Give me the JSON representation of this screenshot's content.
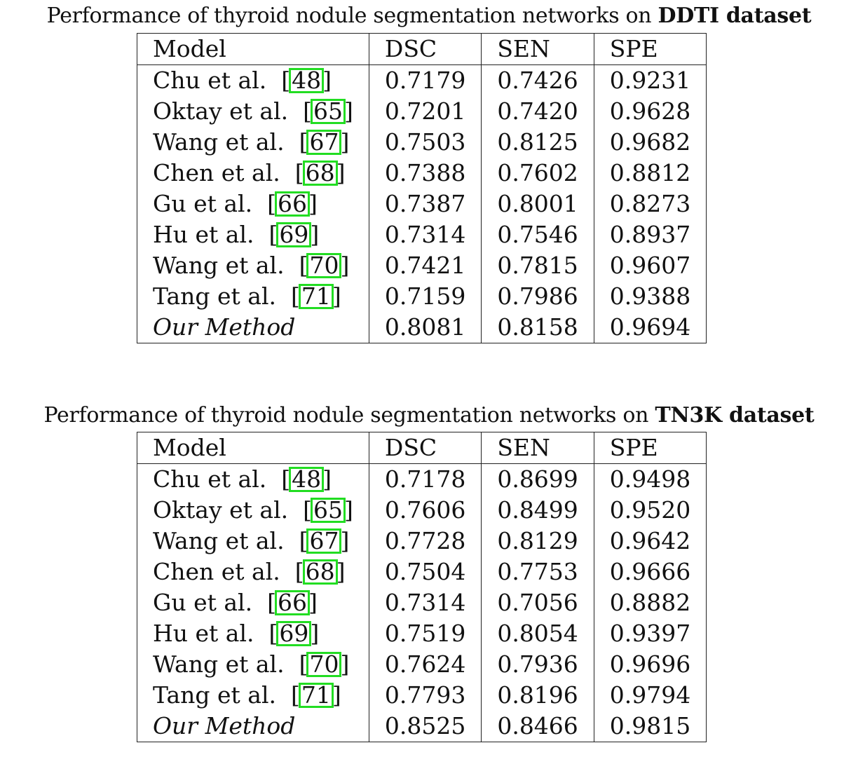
{
  "tables": [
    {
      "caption_prefix": "Performance of thyroid nodule segmentation networks on ",
      "caption_bold": "DDTI dataset",
      "headers": [
        "Model",
        "DSC",
        "SEN",
        "SPE"
      ],
      "rows": [
        {
          "model": "Chu et al.",
          "ref": "48",
          "dsc": "0.7179",
          "sen": "0.7426",
          "spe": "0.9231"
        },
        {
          "model": "Oktay et al.",
          "ref": "65",
          "dsc": "0.7201",
          "sen": "0.7420",
          "spe": "0.9628"
        },
        {
          "model": "Wang et al.",
          "ref": "67",
          "dsc": "0.7503",
          "sen": "0.8125",
          "spe": "0.9682"
        },
        {
          "model": "Chen et al.",
          "ref": "68",
          "dsc": "0.7388",
          "sen": "0.7602",
          "spe": "0.8812"
        },
        {
          "model": "Gu et al.",
          "ref": "66",
          "dsc": "0.7387",
          "sen": "0.8001",
          "spe": "0.8273"
        },
        {
          "model": "Hu et al.",
          "ref": "69",
          "dsc": "0.7314",
          "sen": "0.7546",
          "spe": "0.8937"
        },
        {
          "model": "Wang et al.",
          "ref": "70",
          "dsc": "0.7421",
          "sen": "0.7815",
          "spe": "0.9607"
        },
        {
          "model": "Tang et al.",
          "ref": "71",
          "dsc": "0.7159",
          "sen": "0.7986",
          "spe": "0.9388"
        },
        {
          "model": "Our Method",
          "ref": "",
          "dsc": "0.8081",
          "sen": "0.8158",
          "spe": "0.9694"
        }
      ]
    },
    {
      "caption_prefix": "Performance of thyroid nodule segmentation networks on ",
      "caption_bold": "TN3K dataset",
      "headers": [
        "Model",
        "DSC",
        "SEN",
        "SPE"
      ],
      "rows": [
        {
          "model": "Chu et al.",
          "ref": "48",
          "dsc": "0.7178",
          "sen": "0.8699",
          "spe": "0.9498"
        },
        {
          "model": "Oktay et al.",
          "ref": "65",
          "dsc": "0.7606",
          "sen": "0.8499",
          "spe": "0.9520"
        },
        {
          "model": "Wang et al.",
          "ref": "67",
          "dsc": "0.7728",
          "sen": "0.8129",
          "spe": "0.9642"
        },
        {
          "model": "Chen et al.",
          "ref": "68",
          "dsc": "0.7504",
          "sen": "0.7753",
          "spe": "0.9666"
        },
        {
          "model": "Gu et al.",
          "ref": "66",
          "dsc": "0.7314",
          "sen": "0.7056",
          "spe": "0.8882"
        },
        {
          "model": "Hu et al.",
          "ref": "69",
          "dsc": "0.7519",
          "sen": "0.8054",
          "spe": "0.9397"
        },
        {
          "model": "Wang et al.",
          "ref": "70",
          "dsc": "0.7624",
          "sen": "0.7936",
          "spe": "0.9696"
        },
        {
          "model": "Tang et al.",
          "ref": "71",
          "dsc": "0.7793",
          "sen": "0.8196",
          "spe": "0.9794"
        },
        {
          "model": "Our Method",
          "ref": "",
          "dsc": "0.8525",
          "sen": "0.8466",
          "spe": "0.9815"
        }
      ]
    }
  ],
  "colors": {
    "citation_box": "#22dd22",
    "text": "#111111",
    "rule": "#222222"
  }
}
